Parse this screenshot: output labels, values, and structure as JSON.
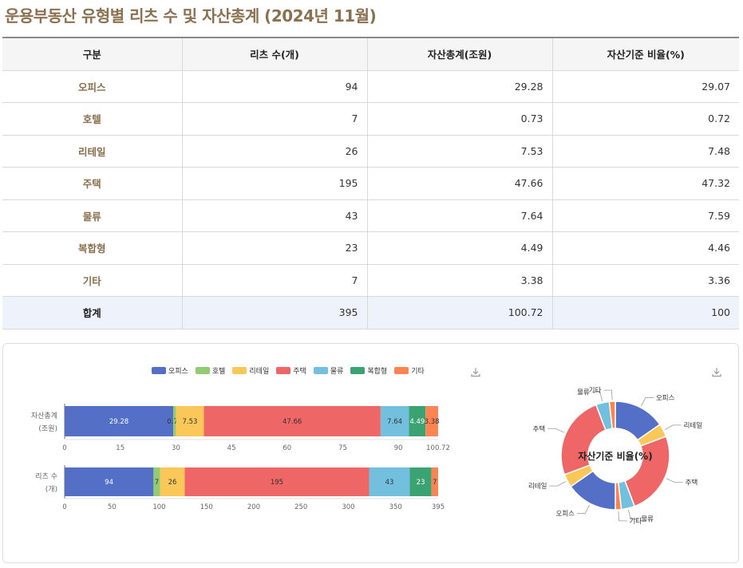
{
  "title": "운용부동산 유형별 리츠 수 및 자산총계 (2024년 11월)",
  "table": {
    "headers": [
      "구분",
      "리츠 수(개)",
      "자산총계(조원)",
      "자산기준 비율(%)"
    ],
    "rows": [
      {
        "cat": "오피스",
        "count": "94",
        "assets": "29.28",
        "ratio": "29.07"
      },
      {
        "cat": "호텔",
        "count": "7",
        "assets": "0.73",
        "ratio": "0.72"
      },
      {
        "cat": "리테일",
        "count": "26",
        "assets": "7.53",
        "ratio": "7.48"
      },
      {
        "cat": "주택",
        "count": "195",
        "assets": "47.66",
        "ratio": "47.32"
      },
      {
        "cat": "물류",
        "count": "43",
        "assets": "7.64",
        "ratio": "7.59"
      },
      {
        "cat": "복합형",
        "count": "23",
        "assets": "4.49",
        "ratio": "4.46"
      },
      {
        "cat": "기타",
        "count": "7",
        "assets": "3.38",
        "ratio": "3.36"
      }
    ],
    "total": {
      "cat": "합계",
      "count": "395",
      "assets": "100.72",
      "ratio": "100"
    }
  },
  "chart_data": [
    {
      "type": "bar",
      "orientation": "horizontal-stacked",
      "categories": [
        "자산총계 (조원)",
        "리츠 수 (개)"
      ],
      "colors": [
        "#5470c6",
        "#91cc75",
        "#fac858",
        "#ee6666",
        "#73c0de",
        "#3ba272",
        "#fc8452"
      ],
      "series": [
        {
          "name": "오피스",
          "values": [
            29.28,
            94
          ]
        },
        {
          "name": "호텔",
          "values": [
            0.73,
            7
          ]
        },
        {
          "name": "리테일",
          "values": [
            7.53,
            26
          ]
        },
        {
          "name": "주택",
          "values": [
            47.66,
            195
          ]
        },
        {
          "name": "물류",
          "values": [
            7.64,
            43
          ]
        },
        {
          "name": "복합형",
          "values": [
            4.49,
            23
          ]
        },
        {
          "name": "기타",
          "values": [
            3.38,
            7
          ]
        }
      ],
      "axes": [
        {
          "row": "자산총계 (조원)",
          "range": [
            0,
            100.72
          ],
          "ticks": [
            "0",
            "15",
            "30",
            "45",
            "60",
            "75",
            "90",
            "100.72"
          ]
        },
        {
          "row": "리츠 수 (개)",
          "range": [
            0,
            395
          ],
          "ticks": [
            "0",
            "50",
            "100",
            "150",
            "200",
            "250",
            "300",
            "350",
            "395"
          ]
        }
      ],
      "legend_position": "top-center"
    },
    {
      "type": "pie",
      "variant": "donut",
      "title": "자산기준 비율(%)",
      "slices": [
        {
          "name": "오피스",
          "value": 29.07,
          "color": "#5470c6"
        },
        {
          "name": "리테일",
          "value": 7.48,
          "color": "#fac858"
        },
        {
          "name": "주택",
          "value": 47.32,
          "color": "#ee6666"
        },
        {
          "name": "물류",
          "value": 7.59,
          "color": "#73c0de"
        },
        {
          "name": "기타",
          "value": 3.36,
          "color": "#fc8452"
        }
      ],
      "labels": [
        "오피스",
        "리테일",
        "주택",
        "물류",
        "기타",
        "오피스",
        "리테일",
        "주택",
        "물류",
        "기타"
      ]
    }
  ]
}
